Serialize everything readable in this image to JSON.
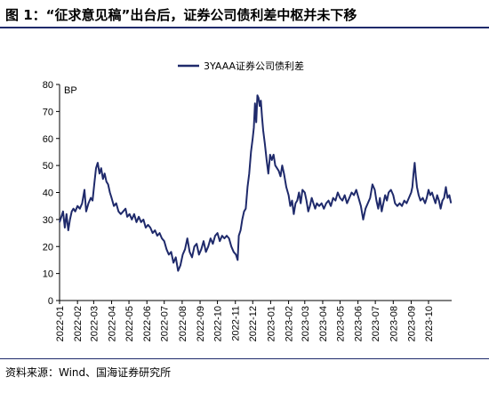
{
  "figure": {
    "title": "图 1：“征求意见稿”出台后，证券公司债利差中枢并未下移",
    "source": "资料来源：Wind、国海证券研究所"
  },
  "chart_data": {
    "type": "line",
    "title": "图 1：“征求意见稿”出台后，证券公司债利差中枢并未下移",
    "ylabel": "BP",
    "xlabel": "",
    "ylim": [
      0,
      80
    ],
    "yticks": [
      0,
      10,
      20,
      30,
      40,
      50,
      60,
      70,
      80
    ],
    "xticks": [
      "2022-01",
      "2022-02",
      "2022-03",
      "2022-04",
      "2022-05",
      "2022-06",
      "2022-07",
      "2022-08",
      "2022-09",
      "2022-10",
      "2022-11",
      "2022-12",
      "2023-01",
      "2023-02",
      "2023-03",
      "2023-04",
      "2023-05",
      "2023-06",
      "2023-07",
      "2023-08",
      "2023-09",
      "2023-10"
    ],
    "legend": {
      "position": "top-center"
    },
    "grid": false,
    "series": [
      {
        "name": "3YAAA证券公司债利差",
        "color": "#1f2a6b",
        "points": [
          [
            "2022-01-01",
            29
          ],
          [
            "2022-01-04",
            31
          ],
          [
            "2022-01-07",
            33
          ],
          [
            "2022-01-10",
            27
          ],
          [
            "2022-01-13",
            32
          ],
          [
            "2022-01-16",
            26
          ],
          [
            "2022-01-19",
            30
          ],
          [
            "2022-01-22",
            33
          ],
          [
            "2022-01-25",
            34
          ],
          [
            "2022-01-28",
            33
          ],
          [
            "2022-02-01",
            35
          ],
          [
            "2022-02-05",
            34
          ],
          [
            "2022-02-09",
            36
          ],
          [
            "2022-02-13",
            41
          ],
          [
            "2022-02-16",
            33
          ],
          [
            "2022-02-20",
            36
          ],
          [
            "2022-02-24",
            38
          ],
          [
            "2022-02-27",
            37
          ],
          [
            "2022-03-02",
            43
          ],
          [
            "2022-03-05",
            49
          ],
          [
            "2022-03-08",
            51
          ],
          [
            "2022-03-11",
            47
          ],
          [
            "2022-03-14",
            49
          ],
          [
            "2022-03-17",
            45
          ],
          [
            "2022-03-20",
            47
          ],
          [
            "2022-03-23",
            44
          ],
          [
            "2022-03-26",
            43
          ],
          [
            "2022-03-29",
            40
          ],
          [
            "2022-04-01",
            38
          ],
          [
            "2022-04-05",
            35
          ],
          [
            "2022-04-09",
            36
          ],
          [
            "2022-04-13",
            33
          ],
          [
            "2022-04-17",
            32
          ],
          [
            "2022-04-21",
            33
          ],
          [
            "2022-04-25",
            34
          ],
          [
            "2022-04-28",
            31
          ],
          [
            "2022-05-02",
            32
          ],
          [
            "2022-05-06",
            30
          ],
          [
            "2022-05-10",
            32
          ],
          [
            "2022-05-14",
            29
          ],
          [
            "2022-05-18",
            31
          ],
          [
            "2022-05-22",
            29
          ],
          [
            "2022-05-26",
            30
          ],
          [
            "2022-05-30",
            27
          ],
          [
            "2022-06-03",
            28
          ],
          [
            "2022-06-07",
            27
          ],
          [
            "2022-06-11",
            25
          ],
          [
            "2022-06-15",
            26
          ],
          [
            "2022-06-19",
            24
          ],
          [
            "2022-06-23",
            25
          ],
          [
            "2022-06-27",
            23
          ],
          [
            "2022-07-01",
            22
          ],
          [
            "2022-07-05",
            19
          ],
          [
            "2022-07-09",
            17
          ],
          [
            "2022-07-13",
            18
          ],
          [
            "2022-07-17",
            14
          ],
          [
            "2022-07-21",
            16
          ],
          [
            "2022-07-25",
            11
          ],
          [
            "2022-07-29",
            13
          ],
          [
            "2022-08-02",
            17
          ],
          [
            "2022-08-06",
            19
          ],
          [
            "2022-08-10",
            23
          ],
          [
            "2022-08-14",
            18
          ],
          [
            "2022-08-18",
            16
          ],
          [
            "2022-08-22",
            20
          ],
          [
            "2022-08-26",
            21
          ],
          [
            "2022-08-30",
            17
          ],
          [
            "2022-09-03",
            19
          ],
          [
            "2022-09-07",
            22
          ],
          [
            "2022-09-11",
            18
          ],
          [
            "2022-09-15",
            20
          ],
          [
            "2022-09-19",
            23
          ],
          [
            "2022-09-23",
            21
          ],
          [
            "2022-09-27",
            24
          ],
          [
            "2022-10-01",
            25
          ],
          [
            "2022-10-05",
            22
          ],
          [
            "2022-10-09",
            24
          ],
          [
            "2022-10-13",
            23
          ],
          [
            "2022-10-17",
            24
          ],
          [
            "2022-10-21",
            23
          ],
          [
            "2022-10-25",
            20
          ],
          [
            "2022-10-29",
            18
          ],
          [
            "2022-11-02",
            17
          ],
          [
            "2022-11-05",
            15
          ],
          [
            "2022-11-07",
            24
          ],
          [
            "2022-11-10",
            26
          ],
          [
            "2022-11-13",
            30
          ],
          [
            "2022-11-16",
            33
          ],
          [
            "2022-11-19",
            34
          ],
          [
            "2022-11-22",
            42
          ],
          [
            "2022-11-25",
            47
          ],
          [
            "2022-11-28",
            55
          ],
          [
            "2022-12-01",
            60
          ],
          [
            "2022-12-03",
            64
          ],
          [
            "2022-12-05",
            73
          ],
          [
            "2022-12-07",
            66
          ],
          [
            "2022-12-09",
            76
          ],
          [
            "2022-12-11",
            75
          ],
          [
            "2022-12-13",
            72
          ],
          [
            "2022-12-15",
            74
          ],
          [
            "2022-12-17",
            68
          ],
          [
            "2022-12-19",
            63
          ],
          [
            "2022-12-22",
            58
          ],
          [
            "2022-12-25",
            52
          ],
          [
            "2022-12-28",
            47
          ],
          [
            "2022-12-31",
            54
          ],
          [
            "2023-01-03",
            52
          ],
          [
            "2023-01-06",
            54
          ],
          [
            "2023-01-09",
            50
          ],
          [
            "2023-01-12",
            49
          ],
          [
            "2023-01-15",
            48
          ],
          [
            "2023-01-18",
            46
          ],
          [
            "2023-01-21",
            50
          ],
          [
            "2023-01-24",
            47
          ],
          [
            "2023-01-28",
            42
          ],
          [
            "2023-02-01",
            39
          ],
          [
            "2023-02-04",
            35
          ],
          [
            "2023-02-07",
            37
          ],
          [
            "2023-02-10",
            32
          ],
          [
            "2023-02-13",
            36
          ],
          [
            "2023-02-16",
            37
          ],
          [
            "2023-02-19",
            40
          ],
          [
            "2023-02-22",
            36
          ],
          [
            "2023-02-25",
            41
          ],
          [
            "2023-03-01",
            40
          ],
          [
            "2023-03-04",
            37
          ],
          [
            "2023-03-07",
            33
          ],
          [
            "2023-03-10",
            35
          ],
          [
            "2023-03-13",
            38
          ],
          [
            "2023-03-16",
            36
          ],
          [
            "2023-03-19",
            34
          ],
          [
            "2023-03-22",
            36
          ],
          [
            "2023-03-26",
            35
          ],
          [
            "2023-03-30",
            36
          ],
          [
            "2023-04-03",
            34
          ],
          [
            "2023-04-07",
            36
          ],
          [
            "2023-04-11",
            37
          ],
          [
            "2023-04-15",
            35
          ],
          [
            "2023-04-19",
            38
          ],
          [
            "2023-04-23",
            37
          ],
          [
            "2023-04-27",
            40
          ],
          [
            "2023-05-01",
            38
          ],
          [
            "2023-05-05",
            37
          ],
          [
            "2023-05-09",
            39
          ],
          [
            "2023-05-13",
            36
          ],
          [
            "2023-05-17",
            38
          ],
          [
            "2023-05-21",
            40
          ],
          [
            "2023-05-25",
            39
          ],
          [
            "2023-05-29",
            41
          ],
          [
            "2023-06-02",
            38
          ],
          [
            "2023-06-06",
            35
          ],
          [
            "2023-06-10",
            30
          ],
          [
            "2023-06-14",
            34
          ],
          [
            "2023-06-18",
            36
          ],
          [
            "2023-06-22",
            38
          ],
          [
            "2023-06-26",
            43
          ],
          [
            "2023-06-30",
            41
          ],
          [
            "2023-07-03",
            37
          ],
          [
            "2023-07-06",
            34
          ],
          [
            "2023-07-09",
            38
          ],
          [
            "2023-07-12",
            33
          ],
          [
            "2023-07-15",
            36
          ],
          [
            "2023-07-18",
            39
          ],
          [
            "2023-07-21",
            37
          ],
          [
            "2023-07-24",
            40
          ],
          [
            "2023-07-28",
            41
          ],
          [
            "2023-08-01",
            39
          ],
          [
            "2023-08-04",
            36
          ],
          [
            "2023-08-08",
            35
          ],
          [
            "2023-08-12",
            36
          ],
          [
            "2023-08-16",
            35
          ],
          [
            "2023-08-20",
            37
          ],
          [
            "2023-08-24",
            36
          ],
          [
            "2023-08-28",
            38
          ],
          [
            "2023-09-01",
            40
          ],
          [
            "2023-09-03",
            42
          ],
          [
            "2023-09-05",
            47
          ],
          [
            "2023-09-07",
            51
          ],
          [
            "2023-09-09",
            46
          ],
          [
            "2023-09-11",
            42
          ],
          [
            "2023-09-14",
            39
          ],
          [
            "2023-09-17",
            37
          ],
          [
            "2023-09-21",
            38
          ],
          [
            "2023-09-25",
            36
          ],
          [
            "2023-09-28",
            38
          ],
          [
            "2023-10-01",
            41
          ],
          [
            "2023-10-04",
            39
          ],
          [
            "2023-10-07",
            40
          ],
          [
            "2023-10-10",
            38
          ],
          [
            "2023-10-13",
            36
          ],
          [
            "2023-10-16",
            39
          ],
          [
            "2023-10-19",
            37
          ],
          [
            "2023-10-22",
            34
          ],
          [
            "2023-10-25",
            37
          ],
          [
            "2023-10-28",
            38
          ],
          [
            "2023-10-31",
            42
          ],
          [
            "2023-11-03",
            38
          ],
          [
            "2023-11-06",
            39
          ],
          [
            "2023-11-09",
            36
          ]
        ]
      }
    ]
  }
}
